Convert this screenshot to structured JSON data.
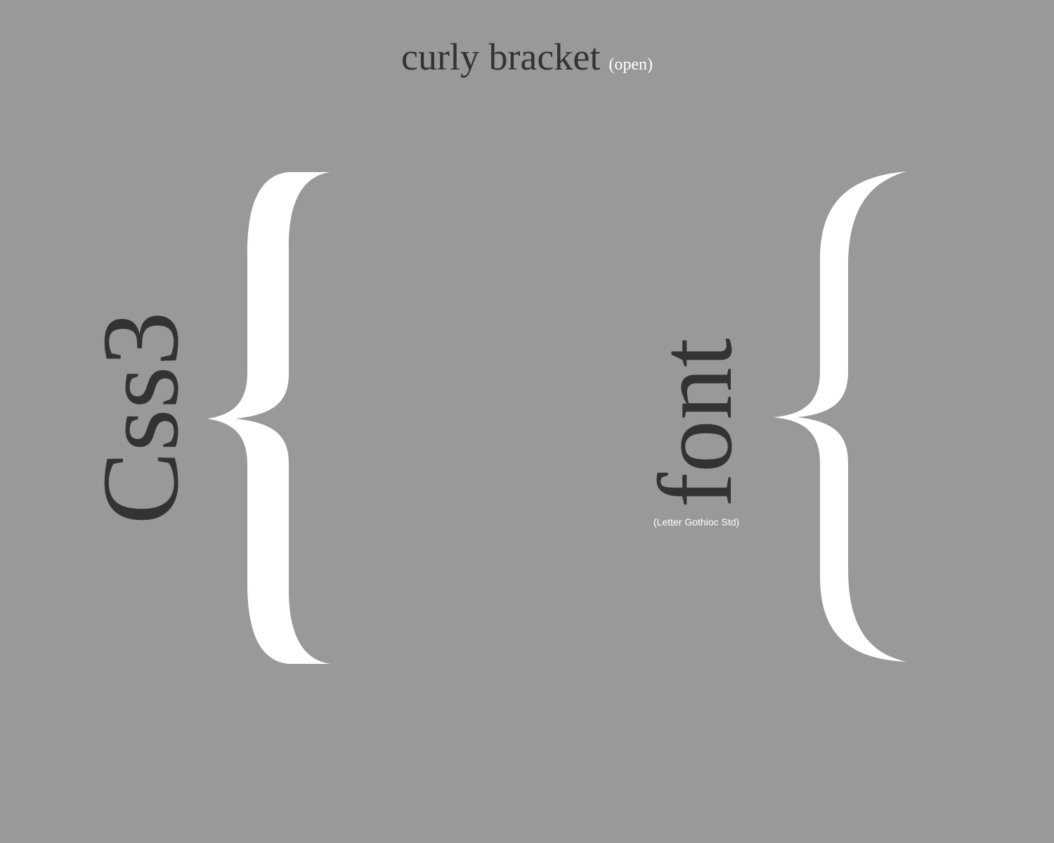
{
  "header": {
    "title": "curly bracket",
    "subtitle": "(open)"
  },
  "left_panel": {
    "word": "Css3"
  },
  "right_panel": {
    "word": "font",
    "caption": "(Letter Gothioc Std)"
  },
  "colors": {
    "background": "#999999",
    "text_dark": "#333333",
    "bracket_fill": "#ffffff"
  }
}
